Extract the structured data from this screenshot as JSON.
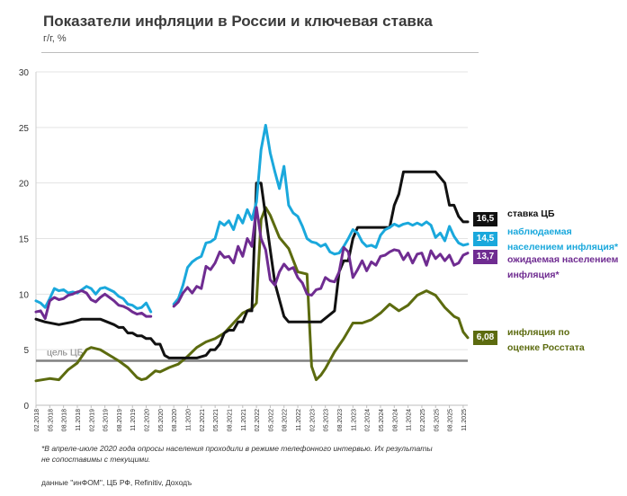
{
  "title": "Показатели инфляции в России и ключевая ставка",
  "subtitle": "г/г, %",
  "footnote": "*В апреле-июле 2020 года опросы населения проходили в режиме телефонного интервью. Их результаты не сопоставимы с текущими.",
  "source": "данные \"инФОМ\", ЦБ РФ, Refinitiv, Доходъ",
  "legend": {
    "key_rate": {
      "label": "ставка ЦБ",
      "value": "16,5",
      "color": "#111111"
    },
    "observed": {
      "label1": "наблюдаемая",
      "label2": "населением инфляция*",
      "value": "14,5",
      "color": "#1aa8dc"
    },
    "expected": {
      "label1": "ожидаемая населением",
      "label2": "инфляция*",
      "value": "13,7",
      "color": "#6f2c91"
    },
    "rosstat": {
      "label1": "инфляция по",
      "label2": "оценке Росстата",
      "value": "6,08",
      "color": "#5c6b0f"
    }
  },
  "chart_data": {
    "type": "line",
    "title": "Показатели инфляции в России и ключевая ставка",
    "ylabel": "г/г, %",
    "ylim": [
      0,
      30
    ],
    "yticks": [
      0,
      5,
      10,
      15,
      20,
      25,
      30
    ],
    "xlim": [
      2018.0833,
      2025.9167
    ],
    "xtick_labels": [
      "02.2018",
      "05.2018",
      "08.2018",
      "11.2018",
      "02.2019",
      "05.2019",
      "08.2019",
      "11.2019",
      "02.2020",
      "05.2020",
      "08.2020",
      "11.2020",
      "02.2021",
      "05.2021",
      "08.2021",
      "11.2021",
      "02.2022",
      "05.2022",
      "08.2022",
      "11.2022",
      "02.2023",
      "05.2023",
      "08.2023",
      "11.2023",
      "02.2024",
      "05.2024",
      "08.2024",
      "11.2024",
      "02.2025",
      "05.2025",
      "08.2025",
      "11.2025"
    ],
    "target": {
      "label": "цель ЦБ",
      "value": 4,
      "color": "#808080"
    },
    "series": [
      {
        "name": "инфляция по оценке Росстата",
        "color": "#5c6b0f",
        "x": [
          2018.083,
          2018.333,
          2018.5,
          2018.667,
          2018.833,
          2019.0,
          2019.083,
          2019.25,
          2019.417,
          2019.583,
          2019.75,
          2019.917,
          2020.0,
          2020.083,
          2020.25,
          2020.333,
          2020.5,
          2020.667,
          2020.833,
          2021.0,
          2021.167,
          2021.333,
          2021.5,
          2021.667,
          2021.833,
          2022.0,
          2022.083,
          2022.167,
          2022.25,
          2022.333,
          2022.5,
          2022.667,
          2022.833,
          2023.0,
          2023.083,
          2023.167,
          2023.25,
          2023.333,
          2023.5,
          2023.667,
          2023.833,
          2024.0,
          2024.167,
          2024.333,
          2024.5,
          2024.667,
          2024.833,
          2025.0,
          2025.167,
          2025.333,
          2025.5,
          2025.667,
          2025.75,
          2025.833,
          2025.917
        ],
        "values": [
          2.2,
          2.4,
          2.3,
          3.2,
          3.8,
          5.0,
          5.2,
          5.0,
          4.5,
          4.0,
          3.4,
          2.5,
          2.3,
          2.4,
          3.1,
          3.0,
          3.4,
          3.7,
          4.4,
          5.2,
          5.7,
          6.0,
          6.5,
          7.4,
          8.3,
          8.7,
          9.2,
          16.7,
          17.8,
          17.1,
          15.1,
          14.1,
          12.0,
          11.8,
          3.5,
          2.3,
          2.7,
          3.3,
          4.8,
          6.0,
          7.4,
          7.4,
          7.7,
          8.3,
          9.1,
          8.5,
          9.0,
          9.9,
          10.3,
          9.9,
          8.8,
          8.0,
          7.8,
          6.6,
          6.08
        ]
      },
      {
        "name": "ставка ЦБ",
        "color": "#111111",
        "x": [
          2018.083,
          2018.25,
          2018.5,
          2018.75,
          2018.917,
          2019.0,
          2019.25,
          2019.5,
          2019.583,
          2019.667,
          2019.75,
          2019.833,
          2019.917,
          2020.0,
          2020.083,
          2020.167,
          2020.25,
          2020.333,
          2020.417,
          2020.5,
          2020.583,
          2021.0,
          2021.167,
          2021.25,
          2021.333,
          2021.417,
          2021.5,
          2021.583,
          2021.667,
          2021.75,
          2021.833,
          2021.917,
          2022.0,
          2022.083,
          2022.167,
          2022.25,
          2022.333,
          2022.417,
          2022.5,
          2022.583,
          2022.667,
          2022.833,
          2023.0,
          2023.25,
          2023.5,
          2023.583,
          2023.667,
          2023.75,
          2023.833,
          2023.917,
          2024.0,
          2024.333,
          2024.5,
          2024.583,
          2024.667,
          2024.75,
          2025.0,
          2025.25,
          2025.333,
          2025.5,
          2025.583,
          2025.667,
          2025.75,
          2025.833,
          2025.917
        ],
        "values": [
          7.75,
          7.5,
          7.25,
          7.5,
          7.75,
          7.75,
          7.75,
          7.25,
          7.0,
          7.0,
          6.5,
          6.5,
          6.25,
          6.25,
          6.0,
          6.0,
          5.5,
          5.5,
          4.5,
          4.25,
          4.25,
          4.25,
          4.5,
          5.0,
          5.0,
          5.5,
          6.5,
          6.75,
          6.75,
          7.5,
          7.5,
          8.5,
          8.5,
          20.0,
          20.0,
          17.0,
          14.0,
          11.0,
          9.5,
          8.0,
          7.5,
          7.5,
          7.5,
          7.5,
          8.5,
          12.0,
          13.0,
          13.0,
          15.0,
          16.0,
          16.0,
          16.0,
          16.0,
          18.0,
          19.0,
          21.0,
          21.0,
          21.0,
          21.0,
          20.0,
          18.0,
          18.0,
          17.0,
          16.5,
          16.5
        ]
      },
      {
        "name": "наблюдаемая населением инфляция*",
        "color": "#1aa8dc",
        "segments": [
          {
            "x": [
              2018.083,
              2018.167,
              2018.25,
              2018.333,
              2018.417,
              2018.5,
              2018.583,
              2018.667,
              2018.75,
              2018.833,
              2018.917,
              2019.0,
              2019.083,
              2019.167,
              2019.25,
              2019.333,
              2019.417,
              2019.5,
              2019.583,
              2019.667,
              2019.75,
              2019.833,
              2019.917,
              2020.0,
              2020.083,
              2020.167
            ],
            "values": [
              9.4,
              9.2,
              8.8,
              9.6,
              10.5,
              10.3,
              10.4,
              10.1,
              10.2,
              10.1,
              10.4,
              10.7,
              10.5,
              10.0,
              10.5,
              10.6,
              10.4,
              10.2,
              9.8,
              9.6,
              9.1,
              9.0,
              8.7,
              8.8,
              9.2,
              8.4
            ]
          },
          {
            "x": [
              2020.583,
              2020.667,
              2020.75,
              2020.833,
              2020.917,
              2021.0,
              2021.083,
              2021.167,
              2021.25,
              2021.333,
              2021.417,
              2021.5,
              2021.583,
              2021.667,
              2021.75,
              2021.833,
              2021.917,
              2022.0,
              2022.083,
              2022.167,
              2022.25,
              2022.333,
              2022.417,
              2022.5,
              2022.583,
              2022.667,
              2022.75,
              2022.833,
              2022.917,
              2023.0,
              2023.083,
              2023.167,
              2023.25,
              2023.333,
              2023.417,
              2023.5,
              2023.583,
              2023.667,
              2023.75,
              2023.833,
              2023.917,
              2024.0,
              2024.083,
              2024.167,
              2024.25,
              2024.333,
              2024.417,
              2024.5,
              2024.583,
              2024.667,
              2024.75,
              2024.833,
              2024.917,
              2025.0,
              2025.083,
              2025.167,
              2025.25,
              2025.333,
              2025.417,
              2025.5,
              2025.583,
              2025.667,
              2025.75,
              2025.833,
              2025.917
            ],
            "values": [
              9.1,
              9.6,
              10.8,
              12.4,
              12.9,
              13.2,
              13.4,
              14.6,
              14.7,
              15.0,
              16.5,
              16.2,
              16.6,
              15.8,
              17.1,
              16.4,
              17.6,
              16.7,
              18.3,
              23.0,
              25.2,
              22.7,
              21.0,
              19.5,
              21.5,
              18.0,
              17.3,
              17.0,
              16.1,
              15.0,
              14.7,
              14.6,
              14.3,
              14.5,
              13.8,
              13.6,
              13.7,
              14.3,
              15.0,
              15.8,
              15.5,
              14.7,
              14.3,
              14.4,
              14.2,
              15.3,
              15.8,
              16.0,
              16.3,
              16.1,
              16.3,
              16.4,
              16.2,
              16.4,
              16.2,
              16.5,
              16.2,
              15.1,
              15.5,
              14.8,
              16.1,
              15.2,
              14.6,
              14.4,
              14.5
            ]
          }
        ]
      },
      {
        "name": "ожидаемая населением инфляция*",
        "color": "#6f2c91",
        "segments": [
          {
            "x": [
              2018.083,
              2018.167,
              2018.25,
              2018.333,
              2018.417,
              2018.5,
              2018.583,
              2018.667,
              2018.75,
              2018.833,
              2018.917,
              2019.0,
              2019.083,
              2019.167,
              2019.25,
              2019.333,
              2019.417,
              2019.5,
              2019.583,
              2019.667,
              2019.75,
              2019.833,
              2019.917,
              2020.0,
              2020.083,
              2020.167
            ],
            "values": [
              8.4,
              8.5,
              7.8,
              9.4,
              9.7,
              9.5,
              9.6,
              9.9,
              10.0,
              10.2,
              10.3,
              10.1,
              9.5,
              9.3,
              9.7,
              10.0,
              9.7,
              9.4,
              9.0,
              8.9,
              8.7,
              8.4,
              8.2,
              8.3,
              8.0,
              8.0
            ]
          },
          {
            "x": [
              2020.583,
              2020.667,
              2020.75,
              2020.833,
              2020.917,
              2021.0,
              2021.083,
              2021.167,
              2021.25,
              2021.333,
              2021.417,
              2021.5,
              2021.583,
              2021.667,
              2021.75,
              2021.833,
              2021.917,
              2022.0,
              2022.083,
              2022.167,
              2022.25,
              2022.333,
              2022.417,
              2022.5,
              2022.583,
              2022.667,
              2022.75,
              2022.833,
              2022.917,
              2023.0,
              2023.083,
              2023.167,
              2023.25,
              2023.333,
              2023.417,
              2023.5,
              2023.583,
              2023.667,
              2023.75,
              2023.833,
              2023.917,
              2024.0,
              2024.083,
              2024.167,
              2024.25,
              2024.333,
              2024.417,
              2024.5,
              2024.583,
              2024.667,
              2024.75,
              2024.833,
              2024.917,
              2025.0,
              2025.083,
              2025.167,
              2025.25,
              2025.333,
              2025.417,
              2025.5,
              2025.583,
              2025.667,
              2025.75,
              2025.833,
              2025.917
            ],
            "values": [
              8.9,
              9.3,
              10.1,
              10.6,
              10.1,
              10.7,
              10.5,
              12.5,
              12.2,
              12.8,
              13.8,
              13.3,
              13.4,
              12.8,
              14.3,
              13.4,
              15.0,
              14.3,
              17.8,
              15.0,
              14.0,
              11.3,
              10.8,
              12.0,
              12.7,
              12.2,
              12.4,
              11.5,
              11.0,
              10.0,
              9.9,
              10.4,
              10.5,
              11.5,
              11.2,
              11.1,
              12.0,
              14.2,
              13.8,
              11.5,
              12.2,
              13.0,
              12.1,
              12.9,
              12.6,
              13.4,
              13.5,
              13.8,
              14.0,
              13.9,
              13.1,
              13.7,
              12.8,
              13.6,
              13.7,
              12.6,
              13.9,
              13.2,
              13.6,
              13.0,
              13.5,
              12.6,
              12.8,
              13.5,
              13.7
            ]
          }
        ]
      }
    ]
  }
}
